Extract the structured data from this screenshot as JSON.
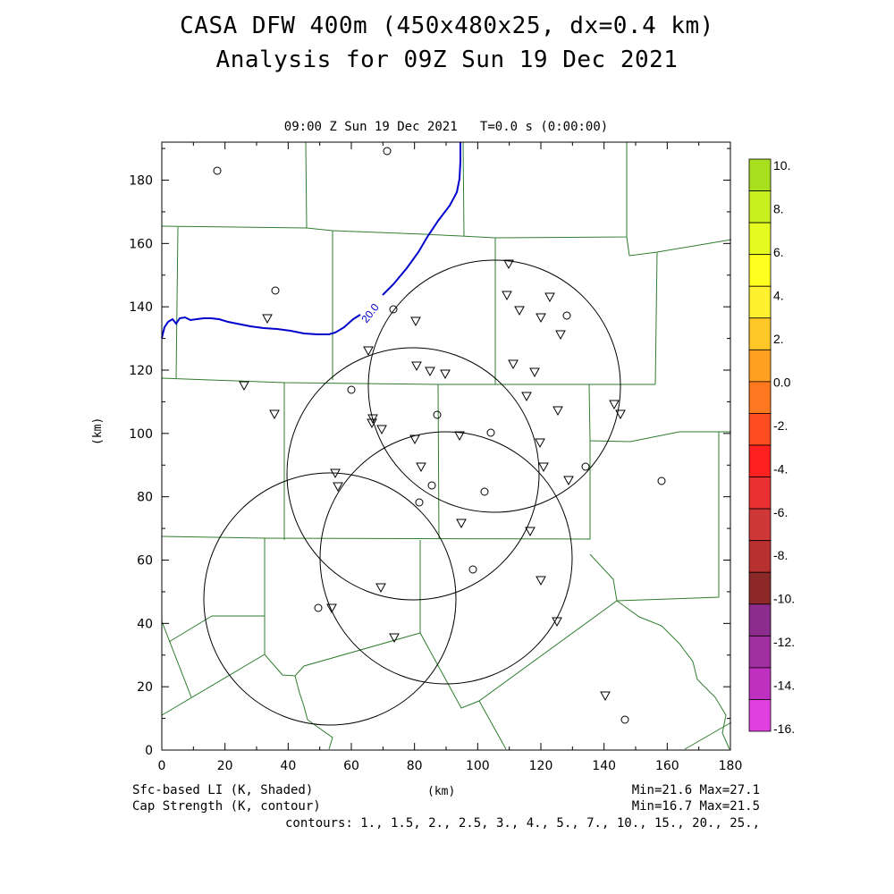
{
  "titles": {
    "line1": "CASA DFW 400m (450x480x25, dx=0.4 km)",
    "line2": "Analysis for 09Z Sun 19 Dec 2021",
    "plot_subtitle": "09:00 Z Sun 19 Dec 2021   T=0.0 s (0:00:00)"
  },
  "axes": {
    "xlabel": "(km)",
    "ylabel": "(km)",
    "x_ticks": [
      "0",
      "20",
      "40",
      "60",
      "80",
      "100",
      "120",
      "140",
      "160",
      "180"
    ],
    "y_ticks": [
      "0",
      "20",
      "40",
      "60",
      "80",
      "100",
      "120",
      "140",
      "160",
      "180"
    ],
    "xlim": [
      0,
      180
    ],
    "ylim": [
      0,
      192
    ]
  },
  "colorbar": {
    "labels": [
      "10.",
      "8.",
      "6.",
      "4.",
      "2.",
      "0.0",
      "-2.",
      "-4.",
      "-6.",
      "-8.",
      "-10.",
      "-12.",
      "-14.",
      "-16."
    ],
    "colors": [
      "#a8e020",
      "#c8f020",
      "#e4fa20",
      "#ffff20",
      "#fff030",
      "#ffc828",
      "#ffa020",
      "#ff7820",
      "#ff4c20",
      "#ff2020",
      "#e83030",
      "#d03838",
      "#b83030",
      "#8c2828",
      "#8c2c8c",
      "#a030a0",
      "#c030c0",
      "#e040e0"
    ]
  },
  "contour": {
    "label": "20.0",
    "color": "#0000cc"
  },
  "footer": {
    "li_label": "Sfc-based LI (K, Shaded)",
    "cap_label": "Cap Strength (K, contour)",
    "li_minmax": "Min=21.6 Max=27.1",
    "cap_minmax": "Min=16.7 Max=21.5",
    "contours": "contours: 1., 1.5, 2., 2.5, 3., 4., 5., 7., 10., 15., 20., 25.,"
  },
  "colors": {
    "county_lines": "#2e7d2e",
    "radar_rings": "#000000",
    "frame": "#000000"
  }
}
